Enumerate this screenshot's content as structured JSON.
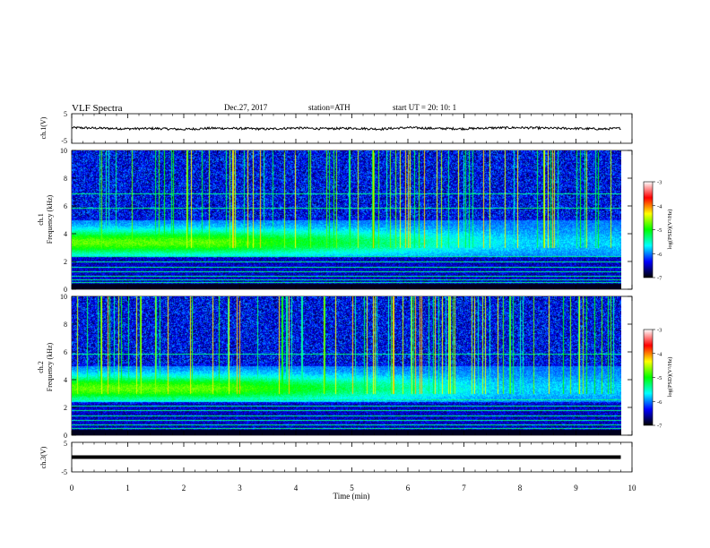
{
  "header": {
    "title": "VLF  Spectra",
    "date": "Dec.27, 2017",
    "station": "station=ATH",
    "start": "start  UT  =    20: 10: 1"
  },
  "chart_data": [
    {
      "type": "line",
      "panel": "ch1-waveform",
      "ylabel": "ch.1(V)",
      "ylim": [
        -5,
        5
      ],
      "yticks": [
        "5",
        "-5"
      ],
      "xlim": [
        0,
        10
      ],
      "x": [
        0,
        0.5,
        1,
        1.5,
        2,
        2.5,
        3,
        3.5,
        4,
        4.5,
        5,
        5.5,
        6,
        6.5,
        7,
        7.5,
        8,
        8.5,
        9,
        9.5,
        9.8
      ],
      "y": [
        0.3,
        0.1,
        -0.1,
        0.0,
        -0.3,
        0.1,
        0.0,
        -0.2,
        0.2,
        -0.1,
        0.1,
        -0.2,
        0.3,
        0.0,
        -0.1,
        0.2,
        0.3,
        0.1,
        0.0,
        -0.2,
        0.1
      ],
      "color": "#000000"
    },
    {
      "type": "heatmap",
      "panel": "ch1-spectrogram",
      "ylabel": "ch.1\nFrequency (kHz)",
      "ylabel_line1": "ch.1",
      "ylabel_line2": "Frequency (kHz)",
      "ylim": [
        0,
        10
      ],
      "yticks": [
        "0",
        "2",
        "4",
        "6",
        "8",
        "10"
      ],
      "xlim": [
        0,
        10
      ],
      "colorbar": {
        "label": "log(PSD)(V²/Hz)",
        "range": [
          -7,
          -3
        ],
        "ticks": [
          "-3",
          "-4",
          "-5",
          "-6",
          "-7"
        ],
        "colors": [
          "#000000",
          "#0000ff",
          "#00ffff",
          "#00ff00",
          "#ffff00",
          "#ff0000",
          "#ffffff"
        ]
      },
      "band_khz": [
        2.4,
        5.0
      ],
      "band_decay_time_min": 5.5,
      "lines_khz": [
        0.5,
        0.7,
        1.0,
        1.3,
        1.6,
        2.0,
        2.4,
        5.9,
        6.9
      ]
    },
    {
      "type": "heatmap",
      "panel": "ch2-spectrogram",
      "ylabel_line1": "ch.2",
      "ylabel_line2": "Frequency (kHz)",
      "ylim": [
        0,
        10
      ],
      "yticks": [
        "0",
        "2",
        "4",
        "6",
        "8",
        "10"
      ],
      "xlim": [
        0,
        10
      ],
      "colorbar": {
        "label": "log(PSD)(V²/Hz)",
        "range": [
          -7,
          -3
        ],
        "ticks": [
          "-3",
          "-4",
          "-5",
          "-6",
          "-7"
        ],
        "colors": [
          "#000000",
          "#0000ff",
          "#00ffff",
          "#00ff00",
          "#ffff00",
          "#ff0000",
          "#ffffff"
        ]
      },
      "band_khz": [
        2.4,
        5.0
      ],
      "band_decay_time_min": 5.0,
      "lines_khz": [
        0.5,
        0.8,
        1.1,
        1.4,
        1.8,
        2.1,
        2.6,
        5.9
      ]
    },
    {
      "type": "line",
      "panel": "ch3-waveform",
      "ylabel": "ch.3(V)",
      "ylim": [
        -5,
        5
      ],
      "yticks": [
        "5",
        "-5"
      ],
      "xlim": [
        0,
        10
      ],
      "x": [
        0,
        9.8
      ],
      "y": [
        0,
        0
      ],
      "xlabel": "Time  (min)",
      "xticks": [
        "0",
        "1",
        "2",
        "3",
        "4",
        "5",
        "6",
        "7",
        "8",
        "9",
        "10"
      ],
      "color": "#000000"
    }
  ]
}
